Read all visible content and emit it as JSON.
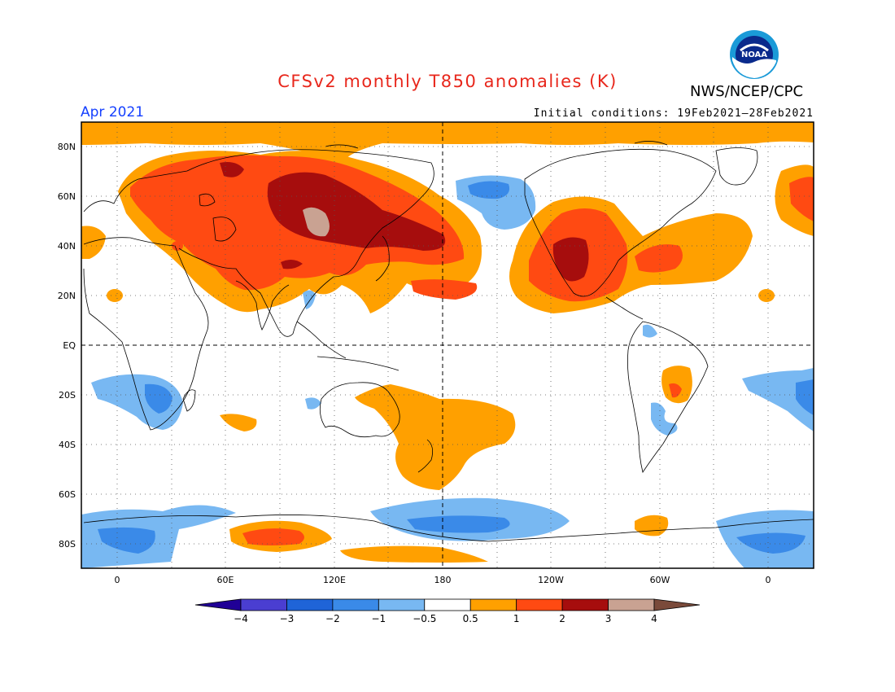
{
  "header": {
    "title": "CFSv2 monthly T850 anomalies (K)",
    "agency": "NWS/NCEP/CPC",
    "logo_text": "NOAA",
    "valid_month": "Apr 2021",
    "initial_conditions": "Initial conditions: 19Feb2021–28Feb2021"
  },
  "map": {
    "lat_labels": [
      "80N",
      "60N",
      "40N",
      "20N",
      "EQ",
      "20S",
      "40S",
      "60S",
      "80S"
    ],
    "lon_labels": [
      "0",
      "60E",
      "120E",
      "180",
      "120W",
      "60W",
      "0"
    ],
    "projection": "cylindrical equidistant",
    "grid": "dotted",
    "reference_lines": [
      "equator",
      "dateline"
    ]
  },
  "colorbar": {
    "labels": [
      "−4",
      "−3",
      "−2",
      "−1",
      "−0.5",
      "0.5",
      "1",
      "2",
      "3",
      "4"
    ],
    "colors": [
      "#200096",
      "#4a3ed1",
      "#1f64d8",
      "#3a8ae8",
      "#78b8f2",
      "#ffffff",
      "#ffa000",
      "#ff4a12",
      "#a60d0d",
      "#c9a292",
      "#7a4a3a"
    ]
  }
}
